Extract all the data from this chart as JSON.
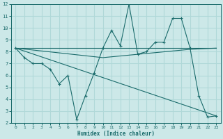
{
  "xlabel": "Humidex (Indice chaleur)",
  "xlim": [
    -0.5,
    23.5
  ],
  "ylim": [
    2,
    12
  ],
  "yticks": [
    2,
    3,
    4,
    5,
    6,
    7,
    8,
    9,
    10,
    11,
    12
  ],
  "xticks": [
    0,
    1,
    2,
    3,
    4,
    5,
    6,
    7,
    8,
    9,
    10,
    11,
    12,
    13,
    14,
    15,
    16,
    17,
    18,
    19,
    20,
    21,
    22,
    23
  ],
  "bg_color": "#cce8e8",
  "line_color": "#1a6b6b",
  "grid_color": "#b0d8d8",
  "line1_x": [
    0,
    1,
    2,
    3,
    4,
    5,
    6,
    7,
    8,
    9,
    10,
    11,
    12,
    13,
    14,
    15,
    16,
    17,
    18,
    19,
    20,
    21,
    22,
    23
  ],
  "line1_y": [
    8.3,
    7.5,
    7.0,
    7.0,
    6.5,
    5.3,
    6.0,
    2.3,
    4.3,
    6.2,
    8.3,
    9.8,
    8.5,
    12.0,
    7.8,
    8.0,
    8.8,
    8.8,
    10.8,
    10.8,
    8.3,
    4.3,
    2.5,
    2.6
  ],
  "line2_x": [
    0,
    23
  ],
  "line2_y": [
    8.3,
    8.3
  ],
  "line3_x": [
    0,
    23
  ],
  "line3_y": [
    8.3,
    2.6
  ],
  "line4_x": [
    0,
    10,
    20,
    23
  ],
  "line4_y": [
    8.3,
    7.5,
    8.2,
    8.3
  ]
}
